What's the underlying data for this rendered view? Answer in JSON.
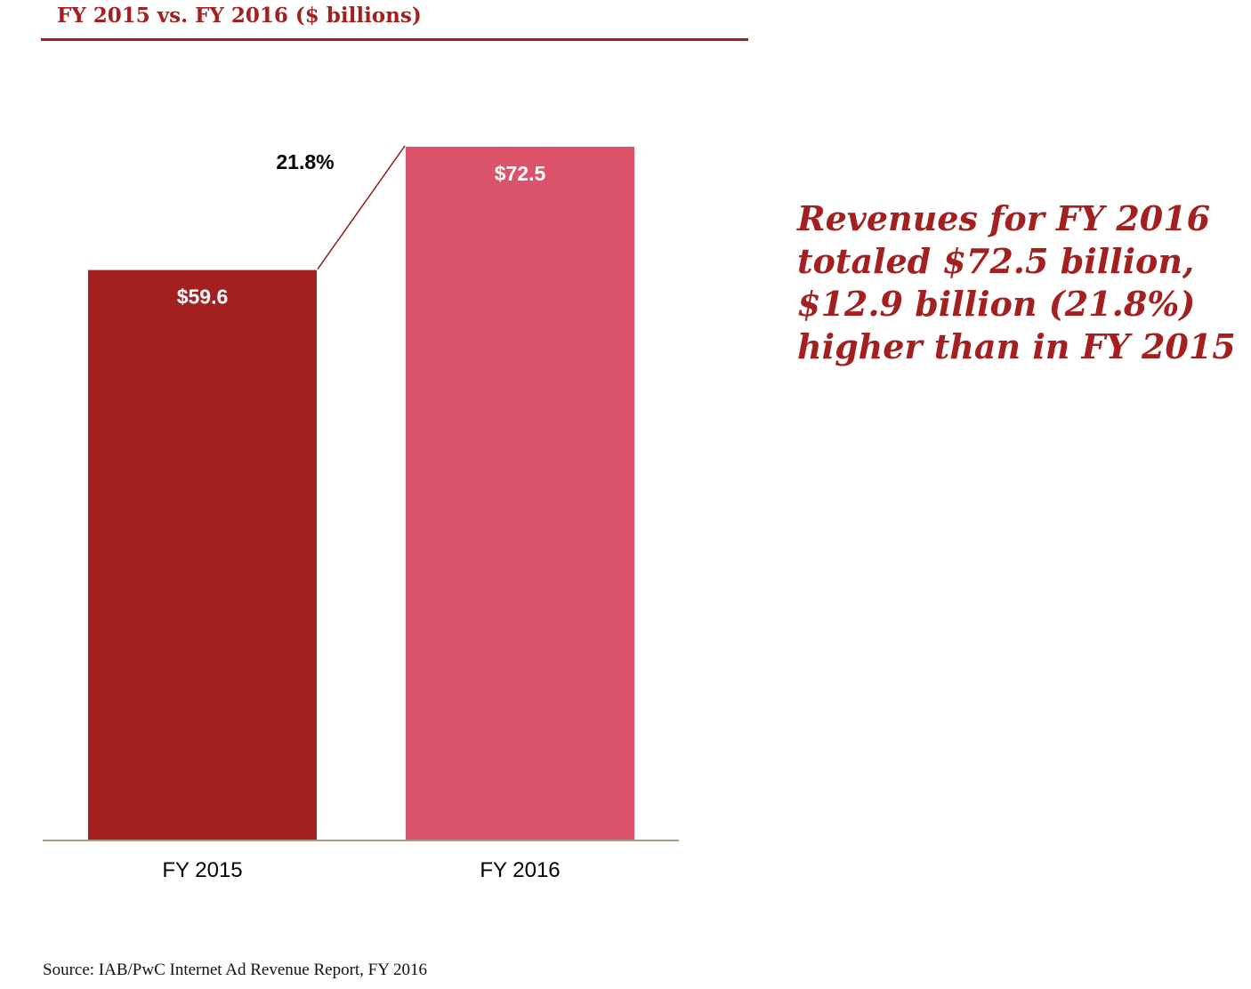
{
  "header": {
    "title": "FY 2015 vs. FY 2016 ($ billions)"
  },
  "chart_data": {
    "type": "bar",
    "title": "FY 2015 vs. FY 2016 ($ billions)",
    "categories": [
      "FY 2015",
      "FY 2016"
    ],
    "values": [
      59.6,
      72.5
    ],
    "value_labels": [
      "$59.6",
      "$72.5"
    ],
    "growth_label": "21.8%",
    "xlabel": "",
    "ylabel": "",
    "ylim": [
      0,
      72.5
    ],
    "grid": false,
    "bar_colors": [
      "#a32020",
      "#db536a"
    ],
    "axis_color": "#a89a88"
  },
  "callout": {
    "lines": [
      "Revenues for FY 2016",
      "totaled $72.5 billion,",
      "$12.9 billion (21.8%)",
      "higher than in FY 2015"
    ]
  },
  "source": {
    "text": "Source: IAB/PwC Internet Ad Revenue Report, FY 2016"
  }
}
